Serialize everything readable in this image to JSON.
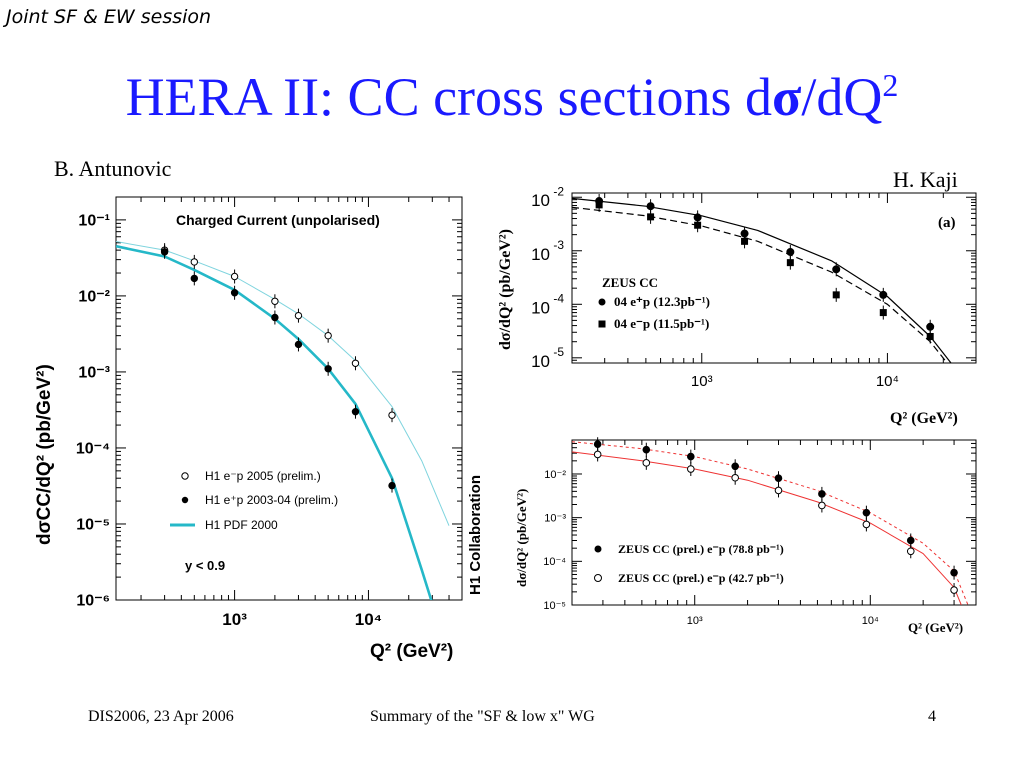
{
  "slide": {
    "session": "Joint SF & EW session",
    "title_main": "HERA II: CC cross sections d",
    "title_sigma": "σ",
    "title_end": "/dQ",
    "title_sup": "2",
    "author_left": "B. Antunovic",
    "author_right": "H. Kaji",
    "footer_left": "DIS2006, 23 Apr 2006",
    "footer_center": "Summary of  the \"SF & low x\" WG",
    "footer_right": "4"
  },
  "chart_data": [
    {
      "type": "scatter",
      "title": "Charged Current (unpolarised)",
      "xlabel": "Q² (GeV²)",
      "ylabel": "dσCC/dQ² (pb/GeV²)",
      "xscale": "log",
      "yscale": "log",
      "xlim": [
        130,
        50000
      ],
      "ylim": [
        1e-06,
        0.2
      ],
      "x_ticks": [
        1000,
        10000
      ],
      "x_tick_labels": [
        "10³",
        "10⁴"
      ],
      "y_ticks": [
        1e-06,
        1e-05,
        0.0001,
        0.001,
        0.01,
        0.1
      ],
      "y_tick_labels": [
        "10⁻⁶",
        "10⁻⁵",
        "10⁻⁴",
        "10⁻³",
        "10⁻²",
        "10⁻¹"
      ],
      "side_label": "H1 Collaboration",
      "cut_label": "y < 0.9",
      "legend_position": "bottom-left",
      "series": [
        {
          "name": "H1 e⁻p 2005 (prelim.)",
          "style": "open-circle",
          "x": [
            300,
            500,
            1000,
            2000,
            3000,
            5000,
            8000,
            15000
          ],
          "y": [
            0.04,
            0.028,
            0.018,
            0.0085,
            0.0055,
            0.003,
            0.0013,
            0.00027
          ]
        },
        {
          "name": "H1 e⁺p 2003-04 (prelim.)",
          "style": "filled-circle",
          "x": [
            300,
            500,
            1000,
            2000,
            3000,
            5000,
            8000,
            15000
          ],
          "y": [
            0.038,
            0.017,
            0.011,
            0.0052,
            0.0023,
            0.0011,
            0.0003,
            3.2e-05
          ]
        },
        {
          "name": "H1 PDF 2000",
          "style": "line",
          "color": "#25b8c8",
          "x": [
            130,
            300,
            500,
            1000,
            2000,
            3000,
            5000,
            8000,
            15000,
            25000,
            30000
          ],
          "y": [
            0.045,
            0.033,
            0.022,
            0.012,
            0.005,
            0.0027,
            0.0011,
            0.00038,
            4e-05,
            2.5e-06,
            9e-07
          ]
        },
        {
          "name": "",
          "style": "line",
          "color": "#7fd4de",
          "x": [
            130,
            300,
            500,
            1000,
            2000,
            3000,
            5000,
            8000,
            15000,
            25000,
            40000
          ],
          "y": [
            0.052,
            0.04,
            0.029,
            0.018,
            0.009,
            0.0058,
            0.003,
            0.0014,
            0.00035,
            6.8e-05,
            9.5e-06
          ]
        }
      ]
    },
    {
      "type": "scatter",
      "panel_label": "(a)",
      "legend_title": "ZEUS CC",
      "xlabel": "Q² (GeV²)",
      "ylabel": "dσ/dQ² (pb/GeV²)",
      "xscale": "log",
      "yscale": "log",
      "xlim": [
        200,
        30000
      ],
      "ylim": [
        8e-06,
        0.012
      ],
      "x_ticks": [
        1000,
        10000
      ],
      "x_tick_labels": [
        "10³",
        "10⁴"
      ],
      "y_ticks": [
        0.01,
        0.001,
        0.0001,
        1e-05
      ],
      "y_tick_bases": [
        "10",
        "10",
        "10",
        "10"
      ],
      "y_tick_exponents": [
        "-2",
        "-3",
        "-4",
        "-5"
      ],
      "legend_position": "middle-left",
      "series": [
        {
          "name": "04 e⁺p (12.3pb⁻¹)",
          "style": "filled-circle",
          "x": [
            280,
            530,
            950,
            1700,
            3000,
            5300,
            9500,
            17000
          ],
          "y": [
            0.0085,
            0.0068,
            0.0042,
            0.0021,
            0.00095,
            0.00045,
            0.00015,
            3.8e-05
          ]
        },
        {
          "name": "04 e⁻p (11.5pb⁻¹)",
          "style": "filled-square",
          "x": [
            280,
            530,
            950,
            1700,
            3000,
            5300,
            9500,
            17000
          ],
          "y": [
            0.0072,
            0.0043,
            0.003,
            0.0015,
            0.0006,
            0.00015,
            7e-05,
            2.5e-05
          ]
        },
        {
          "name": "",
          "style": "line",
          "x": [
            200,
            500,
            1000,
            2000,
            5000,
            10000,
            17000,
            22000
          ],
          "y": [
            0.0095,
            0.0068,
            0.0045,
            0.0024,
            0.00065,
            0.00014,
            2.5e-05,
            8e-06
          ]
        },
        {
          "name": "",
          "style": "dashed-line",
          "x": [
            200,
            500,
            1000,
            2000,
            5000,
            10000,
            17000,
            21000
          ],
          "y": [
            0.0065,
            0.0045,
            0.0029,
            0.0015,
            0.0004,
            0.0001,
            2e-05,
            8e-06
          ]
        }
      ]
    },
    {
      "type": "scatter",
      "xlabel": "Q² (GeV²)",
      "ylabel": "dσ/dQ² (pb/GeV²)",
      "xscale": "log",
      "yscale": "log",
      "xlim": [
        200,
        40000
      ],
      "ylim": [
        1e-05,
        0.06
      ],
      "x_ticks": [
        1000,
        10000
      ],
      "x_tick_labels": [
        "10³",
        "10⁴"
      ],
      "y_ticks": [
        0.01,
        0.001,
        0.0001,
        1e-05
      ],
      "y_tick_labels": [
        "10⁻²",
        "10⁻³",
        "10⁻⁴",
        "10⁻⁵"
      ],
      "legend_position": "bottom-left",
      "series": [
        {
          "name": "ZEUS CC (prel.) e⁻p (78.8 pb⁻¹)",
          "style": "filled-circle",
          "x": [
            280,
            530,
            950,
            1700,
            3000,
            5300,
            9500,
            17000,
            30000
          ],
          "y": [
            0.048,
            0.036,
            0.025,
            0.015,
            0.008,
            0.0035,
            0.0013,
            0.0003,
            5.5e-05
          ]
        },
        {
          "name": "ZEUS CC (prel.) e⁻p (42.7 pb⁻¹)",
          "style": "open-circle",
          "x": [
            280,
            530,
            950,
            1700,
            3000,
            5300,
            9500,
            17000,
            30000
          ],
          "y": [
            0.028,
            0.018,
            0.013,
            0.0082,
            0.0042,
            0.0019,
            0.0007,
            0.00017,
            2.2e-05
          ]
        },
        {
          "name": "",
          "style": "dashed-line",
          "color": "#e33",
          "x": [
            200,
            500,
            1000,
            2000,
            5000,
            10000,
            20000,
            30000,
            36000
          ],
          "y": [
            0.055,
            0.038,
            0.025,
            0.013,
            0.0042,
            0.0013,
            0.00026,
            6e-05,
            1e-05
          ]
        },
        {
          "name": "",
          "style": "line",
          "color": "#e33",
          "x": [
            200,
            500,
            1000,
            2000,
            5000,
            10000,
            20000,
            30000,
            33000
          ],
          "y": [
            0.032,
            0.02,
            0.013,
            0.0072,
            0.0023,
            0.00075,
            0.00015,
            2.5e-05,
            1e-05
          ]
        }
      ]
    }
  ]
}
